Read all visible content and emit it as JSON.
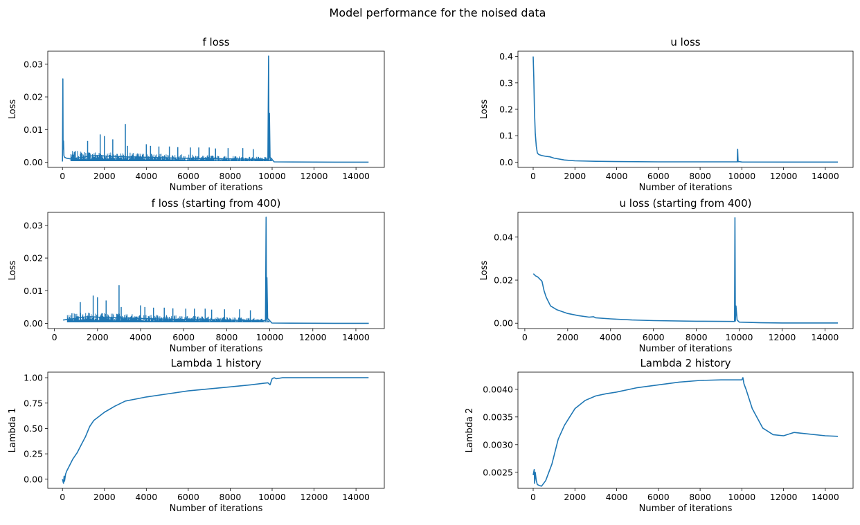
{
  "figure": {
    "suptitle": "Model performance for the noised data"
  },
  "chart_data": [
    {
      "type": "line",
      "title": "f loss",
      "xlabel": "Number of iterations",
      "ylabel": "Loss",
      "xlim": [
        -700,
        15350
      ],
      "ylim": [
        -0.0016,
        0.034
      ],
      "xticks": [
        0,
        2000,
        4000,
        6000,
        8000,
        10000,
        12000,
        14000
      ],
      "yticks": [
        0.0,
        0.01,
        0.02,
        0.03
      ],
      "ytick_labels": [
        "0.00",
        "0.01",
        "0.02",
        "0.03"
      ],
      "series": [
        {
          "color": "#1f77b4",
          "x": [
            0,
            20,
            30,
            50,
            70,
            100,
            200,
            400,
            600,
            1000,
            1200,
            1500,
            1800,
            2000,
            2400,
            3000,
            3050,
            3500,
            4000,
            5000,
            6000,
            7000,
            8000,
            9000,
            9500,
            9700,
            9800,
            9830,
            9850,
            9870,
            9900,
            9950,
            10000,
            10100,
            11000,
            12000,
            13000,
            14000,
            14600
          ],
          "y": [
            0.0002,
            0.0255,
            0.004,
            0.0065,
            0.002,
            0.0015,
            0.0012,
            0.001,
            0.0012,
            0.0015,
            0.0018,
            0.002,
            0.002,
            0.0019,
            0.0018,
            0.0017,
            0.0016,
            0.0016,
            0.0015,
            0.0013,
            0.0012,
            0.0011,
            0.001,
            0.0009,
            0.0008,
            0.0008,
            0.0009,
            0.0325,
            0.001,
            0.015,
            0.0015,
            0.0012,
            0.0008,
            0.0001,
            5e-05,
            3e-05,
            2e-05,
            2e-05,
            2e-05
          ]
        }
      ],
      "spikes_region": {
        "from": 400,
        "to": 10000,
        "band_top_start": 0.0035,
        "band_top_end": 0.0015
      },
      "spike_peaks": [
        [
          1200,
          0.0065
        ],
        [
          1800,
          0.0085
        ],
        [
          2000,
          0.008
        ],
        [
          2400,
          0.007
        ],
        [
          3000,
          0.0117
        ],
        [
          3100,
          0.005
        ],
        [
          4000,
          0.0055
        ],
        [
          4200,
          0.005
        ],
        [
          4600,
          0.0048
        ],
        [
          5100,
          0.0048
        ],
        [
          5500,
          0.0046
        ],
        [
          6100,
          0.0045
        ],
        [
          6500,
          0.0045
        ],
        [
          7000,
          0.0045
        ],
        [
          7300,
          0.0042
        ],
        [
          7900,
          0.0043
        ],
        [
          8600,
          0.0043
        ],
        [
          9100,
          0.004
        ]
      ]
    },
    {
      "type": "line",
      "title": "u loss",
      "xlabel": "Number of iterations",
      "ylabel": "Loss",
      "xlim": [
        -730,
        15330
      ],
      "ylim": [
        -0.02,
        0.42
      ],
      "xticks": [
        0,
        2000,
        4000,
        6000,
        8000,
        10000,
        12000,
        14000
      ],
      "yticks": [
        0.0,
        0.1,
        0.2,
        0.3,
        0.4
      ],
      "ytick_labels": [
        "0.0",
        "0.1",
        "0.2",
        "0.3",
        "0.4"
      ],
      "series": [
        {
          "color": "#1f77b4",
          "x": [
            0,
            30,
            60,
            100,
            150,
            200,
            250,
            300,
            400,
            600,
            800,
            1000,
            1500,
            2000,
            3000,
            4000,
            6000,
            8000,
            9700,
            9780,
            9800,
            9820,
            9850,
            10000,
            12000,
            14600
          ],
          "y": [
            0.4,
            0.32,
            0.2,
            0.11,
            0.06,
            0.035,
            0.03,
            0.028,
            0.025,
            0.022,
            0.02,
            0.015,
            0.008,
            0.005,
            0.003,
            0.002,
            0.001,
            0.001,
            0.001,
            0.001,
            0.049,
            0.001,
            0.002,
            0.0005,
            0.0001,
            0.0001
          ]
        }
      ]
    },
    {
      "type": "line",
      "title": "f loss (starting from 400)",
      "xlabel": "Number of iterations",
      "ylabel": "Loss",
      "xlim": [
        -310,
        15320
      ],
      "ylim": [
        -0.0016,
        0.034
      ],
      "xticks": [
        0,
        2000,
        4000,
        6000,
        8000,
        10000,
        12000,
        14000
      ],
      "yticks": [
        0.0,
        0.01,
        0.02,
        0.03
      ],
      "ytick_labels": [
        "0.00",
        "0.01",
        "0.02",
        "0.03"
      ],
      "series": [
        {
          "color": "#1f77b4",
          "x": [
            400,
            600,
            1000,
            1200,
            1500,
            1800,
            2000,
            2400,
            3000,
            3500,
            4000,
            5000,
            6000,
            7000,
            8000,
            9000,
            9500,
            9700,
            9800,
            9830,
            9850,
            9870,
            9900,
            9950,
            10000,
            10100,
            11000,
            12000,
            13000,
            14000,
            14600
          ],
          "y": [
            0.001,
            0.0012,
            0.0015,
            0.0018,
            0.002,
            0.002,
            0.0019,
            0.0018,
            0.0017,
            0.0016,
            0.0015,
            0.0013,
            0.0012,
            0.0011,
            0.001,
            0.0009,
            0.0008,
            0.0008,
            0.0009,
            0.0325,
            0.001,
            0.014,
            0.0015,
            0.0012,
            0.0008,
            0.0001,
            5e-05,
            3e-05,
            2e-05,
            2e-05,
            2e-05
          ]
        }
      ],
      "spikes_region": {
        "from": 600,
        "to": 10000,
        "band_top_start": 0.0035,
        "band_top_end": 0.0015
      },
      "spike_peaks": [
        [
          1200,
          0.0065
        ],
        [
          1800,
          0.0085
        ],
        [
          2000,
          0.008
        ],
        [
          2400,
          0.007
        ],
        [
          3000,
          0.0117
        ],
        [
          3100,
          0.005
        ],
        [
          4000,
          0.0055
        ],
        [
          4200,
          0.005
        ],
        [
          4600,
          0.0048
        ],
        [
          5100,
          0.0048
        ],
        [
          5500,
          0.0046
        ],
        [
          6100,
          0.0045
        ],
        [
          6500,
          0.0045
        ],
        [
          7000,
          0.0045
        ],
        [
          7300,
          0.0042
        ],
        [
          7900,
          0.0043
        ],
        [
          8600,
          0.0043
        ],
        [
          9100,
          0.004
        ]
      ]
    },
    {
      "type": "line",
      "title": "u loss (starting from 400)",
      "xlabel": "Number of iterations",
      "ylabel": "Loss",
      "xlim": [
        -320,
        15310
      ],
      "ylim": [
        -0.0025,
        0.0515
      ],
      "xticks": [
        0,
        2000,
        4000,
        6000,
        8000,
        10000,
        12000,
        14000
      ],
      "yticks": [
        0.0,
        0.02,
        0.04
      ],
      "ytick_labels": [
        "0.00",
        "0.02",
        "0.04"
      ],
      "series": [
        {
          "color": "#1f77b4",
          "x": [
            400,
            500,
            600,
            700,
            800,
            900,
            1000,
            1200,
            1500,
            2000,
            2500,
            3000,
            3200,
            3300,
            4000,
            5000,
            6000,
            8000,
            9700,
            9780,
            9800,
            9820,
            9850,
            9900,
            10000,
            11000,
            12000,
            14600
          ],
          "y": [
            0.023,
            0.022,
            0.0215,
            0.0205,
            0.0195,
            0.015,
            0.012,
            0.008,
            0.0062,
            0.0045,
            0.0035,
            0.0028,
            0.003,
            0.0025,
            0.002,
            0.0015,
            0.0012,
            0.0009,
            0.0008,
            0.0008,
            0.049,
            0.001,
            0.008,
            0.0015,
            0.0005,
            0.0002,
            0.0001,
            0.0001
          ]
        }
      ]
    },
    {
      "type": "line",
      "title": "Lambda 1 history",
      "xlabel": "Number of iterations",
      "ylabel": "Lambda 1",
      "xlim": [
        -700,
        15350
      ],
      "ylim": [
        -0.09,
        1.055
      ],
      "xticks": [
        0,
        2000,
        4000,
        6000,
        8000,
        10000,
        12000,
        14000
      ],
      "yticks": [
        0.0,
        0.25,
        0.5,
        0.75,
        1.0
      ],
      "ytick_labels": [
        "0.00",
        "0.25",
        "0.50",
        "0.75",
        "1.00"
      ],
      "series": [
        {
          "color": "#1f77b4",
          "x": [
            0,
            50,
            80,
            100,
            150,
            200,
            300,
            500,
            700,
            900,
            1100,
            1300,
            1500,
            2000,
            2500,
            3000,
            3500,
            4000,
            5000,
            6000,
            7000,
            8000,
            9000,
            9800,
            9900,
            9950,
            10000,
            10100,
            10200,
            10500,
            11000,
            12000,
            13000,
            14000,
            14600
          ],
          "y": [
            0.0,
            -0.04,
            0.03,
            -0.02,
            0.05,
            0.08,
            0.12,
            0.2,
            0.26,
            0.34,
            0.42,
            0.52,
            0.58,
            0.66,
            0.72,
            0.77,
            0.79,
            0.81,
            0.84,
            0.87,
            0.89,
            0.91,
            0.93,
            0.95,
            0.93,
            0.96,
            0.99,
            1.0,
            0.99,
            1.0,
            1.0,
            1.0,
            1.0,
            1.0,
            1.0
          ]
        }
      ]
    },
    {
      "type": "line",
      "title": "Lambda 2 history",
      "xlabel": "Number of iterations",
      "ylabel": "Lambda 2",
      "xlim": [
        -730,
        15330
      ],
      "ylim": [
        0.00221,
        0.00431
      ],
      "xticks": [
        0,
        2000,
        4000,
        6000,
        8000,
        10000,
        12000,
        14000
      ],
      "yticks": [
        0.0025,
        0.003,
        0.0035,
        0.004
      ],
      "ytick_labels": [
        "0.0025",
        "0.0030",
        "0.0035",
        "0.0040"
      ],
      "series": [
        {
          "color": "#1f77b4",
          "x": [
            0,
            50,
            70,
            100,
            150,
            200,
            300,
            400,
            600,
            900,
            1200,
            1500,
            2000,
            2500,
            3000,
            3500,
            4000,
            5000,
            6000,
            7000,
            8000,
            9000,
            9800,
            10000,
            10050,
            10100,
            10200,
            10500,
            11000,
            11500,
            12000,
            12500,
            13000,
            14000,
            14600
          ],
          "y": [
            0.00245,
            0.00255,
            0.0023,
            0.0025,
            0.00235,
            0.00228,
            0.00226,
            0.00225,
            0.00235,
            0.00265,
            0.0031,
            0.00335,
            0.00365,
            0.0038,
            0.00388,
            0.00392,
            0.00395,
            0.00403,
            0.00408,
            0.00413,
            0.00416,
            0.00417,
            0.00417,
            0.00417,
            0.00421,
            0.0041,
            0.004,
            0.00365,
            0.0033,
            0.00318,
            0.00316,
            0.00322,
            0.0032,
            0.00316,
            0.00315
          ]
        }
      ]
    }
  ]
}
